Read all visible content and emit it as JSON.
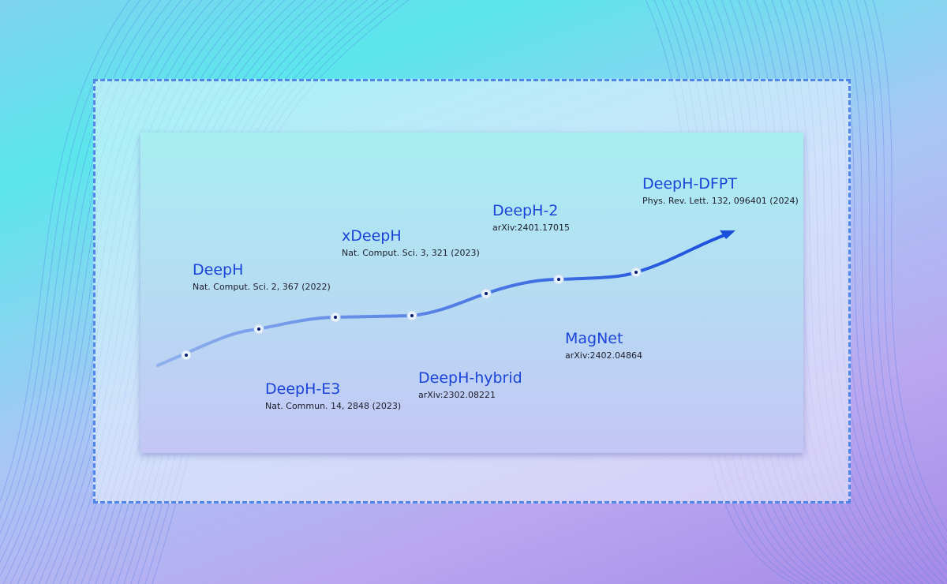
{
  "colors": {
    "accent": "#1a44d8",
    "curve": "#3f77e4",
    "card_top": "#a8eef2",
    "card_bottom": "#c4c6f5",
    "frame": "#4f86e8"
  },
  "milestones": [
    {
      "title": "DeepH",
      "ref": "Nat. Comput. Sci. 2, 367 (2022)",
      "position": "above"
    },
    {
      "title": "DeepH-E3",
      "ref": "Nat. Commun. 14, 2848 (2023)",
      "position": "below"
    },
    {
      "title": "xDeepH",
      "ref": "Nat. Comput. Sci. 3, 321 (2023)",
      "position": "above"
    },
    {
      "title": "DeepH-hybrid",
      "ref": "arXiv:2302.08221",
      "position": "below"
    },
    {
      "title": "DeepH-2",
      "ref": "arXiv:2401.17015",
      "position": "above"
    },
    {
      "title": "MagNet",
      "ref": "arXiv:2402.04864",
      "position": "below"
    },
    {
      "title": "DeepH-DFPT",
      "ref": "Phys. Rev. Lett. 132, 096401 (2024)",
      "position": "above"
    }
  ]
}
